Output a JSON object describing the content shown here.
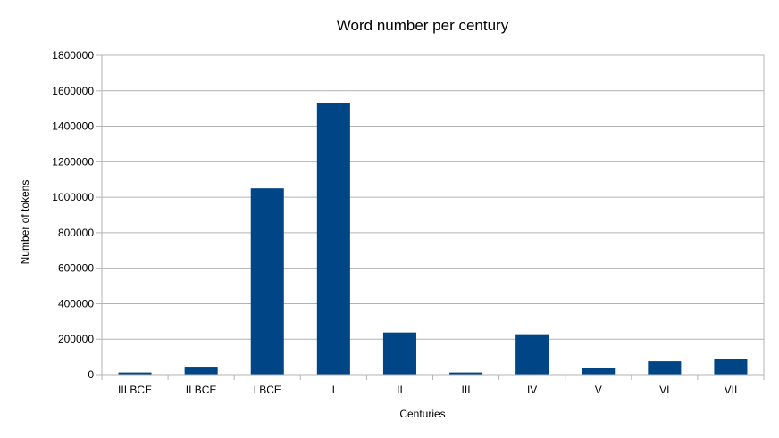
{
  "chart_data": {
    "type": "bar",
    "title": "Word number per century",
    "xlabel": "Centuries",
    "ylabel": "Number of tokens",
    "categories": [
      "III BCE",
      "II BCE",
      "I BCE",
      "I",
      "II",
      "III",
      "IV",
      "V",
      "VI",
      "VII"
    ],
    "values": [
      12000,
      45000,
      1050000,
      1530000,
      238000,
      12000,
      228000,
      37000,
      75000,
      88000
    ],
    "ylim": [
      0,
      1800000
    ],
    "yticks": [
      "0",
      "200000",
      "400000",
      "600000",
      "800000",
      "1000000",
      "1200000",
      "1400000",
      "1600000",
      "1800000"
    ],
    "grid": true,
    "legend": "none",
    "bar_color": "#004586"
  }
}
